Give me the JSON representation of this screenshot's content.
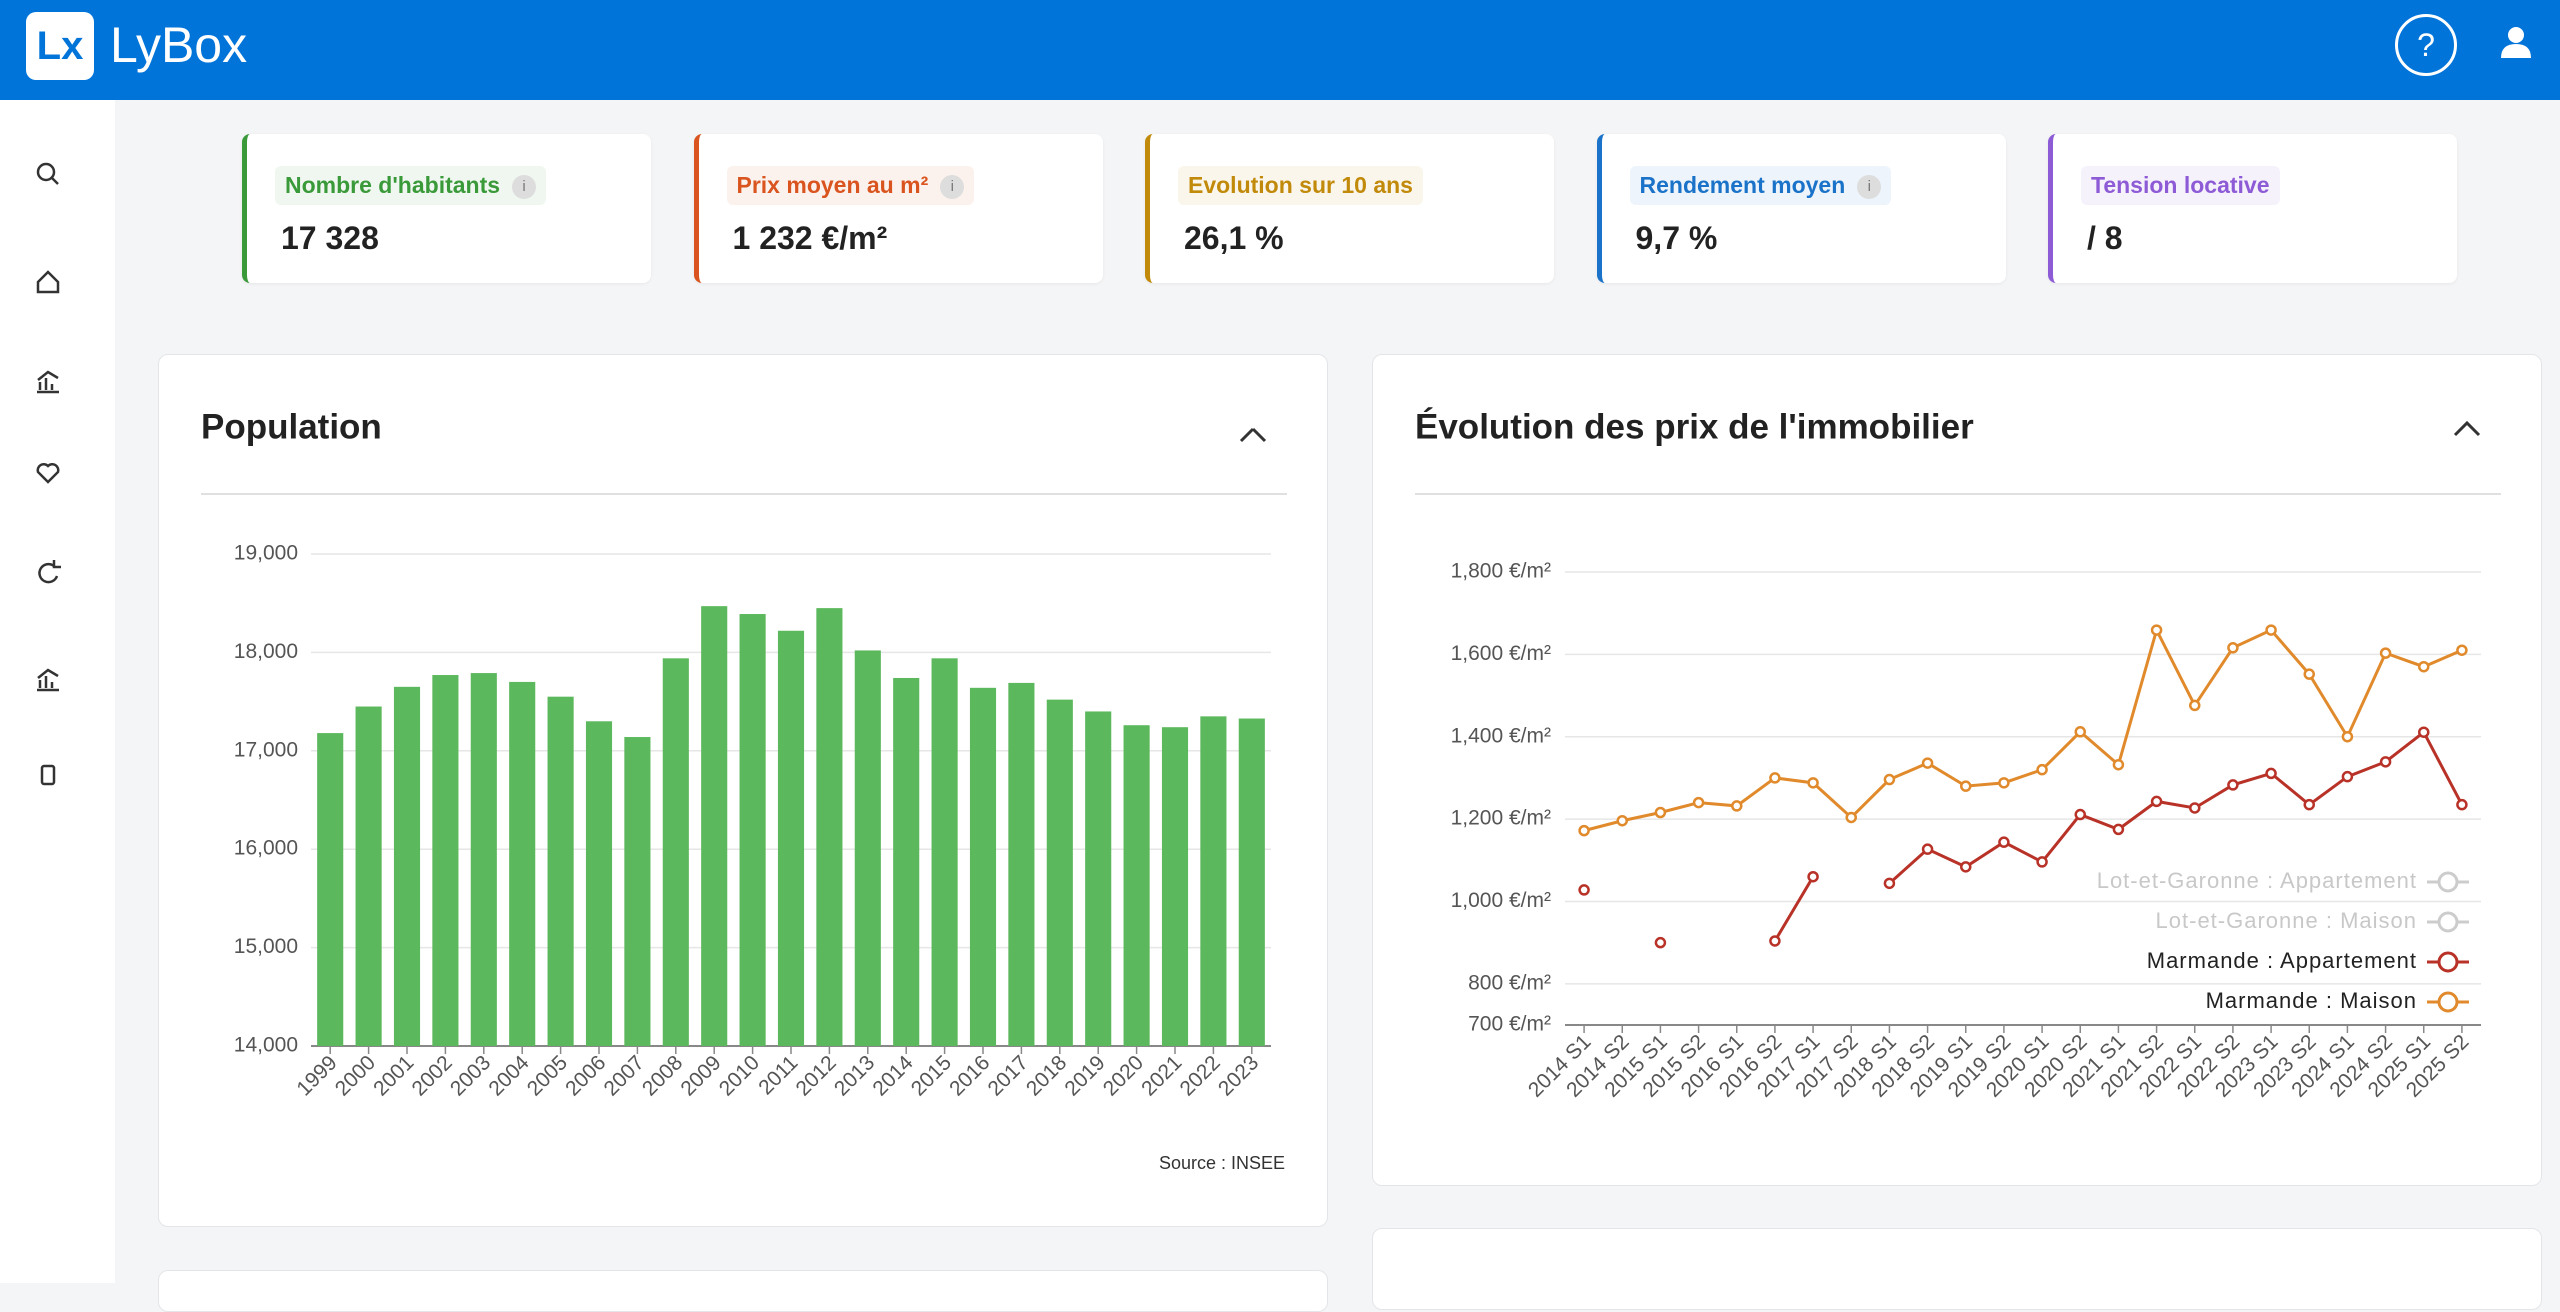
{
  "header": {
    "brand": "LyBox",
    "logo": "Lx",
    "help": "?"
  },
  "kpis": [
    {
      "label": "Nombre d'habitants",
      "value": "17 328",
      "info": "i",
      "color": "#3a9a3a"
    },
    {
      "label": "Prix moyen au m²",
      "value": "1 232 €/m²",
      "info": "i",
      "color": "#d9541e"
    },
    {
      "label": "Evolution sur 10 ans",
      "value": "26,1 %",
      "color": "#c28a0a"
    },
    {
      "label": "Rendement moyen",
      "value": "9,7 %",
      "info": "i",
      "color": "#1a73c8"
    },
    {
      "label": "Tension locative",
      "value": "/ 8",
      "color": "#8e5bd6"
    }
  ],
  "chart_data": [
    {
      "type": "bar",
      "title": "Population",
      "source": "Source : INSEE",
      "color": "#5cb85c",
      "categories": [
        "1999",
        "2000",
        "2001",
        "2002",
        "2003",
        "2004",
        "2005",
        "2006",
        "2007",
        "2008",
        "2009",
        "2010",
        "2011",
        "2012",
        "2013",
        "2014",
        "2015",
        "2016",
        "2017",
        "2018",
        "2019",
        "2020",
        "2021",
        "2022",
        "2023"
      ],
      "values": [
        17180,
        17450,
        17650,
        17770,
        17790,
        17700,
        17550,
        17300,
        17140,
        17940,
        18470,
        18390,
        18220,
        18450,
        18020,
        17740,
        17940,
        17640,
        17690,
        17520,
        17400,
        17260,
        17240,
        17350,
        17328
      ],
      "ylim": [
        14000,
        19000
      ],
      "yticks": [
        {
          "value": 14000,
          "label": "14,000"
        },
        {
          "value": 15000,
          "label": "15,000"
        },
        {
          "value": 16000,
          "label": "16,000"
        },
        {
          "value": 17000,
          "label": "17,000"
        },
        {
          "value": 18000,
          "label": "18,000"
        },
        {
          "value": 19000,
          "label": "19,000"
        }
      ],
      "grid": true
    },
    {
      "type": "line",
      "title": "Évolution des prix de l'immobilier",
      "legend": "bottom-right",
      "categories": [
        "2014 S1",
        "2014 S2",
        "2015 S1",
        "2015 S2",
        "2016 S1",
        "2016 S2",
        "2017 S1",
        "2017 S2",
        "2018 S1",
        "2018 S2",
        "2019 S1",
        "2019 S2",
        "2020 S1",
        "2020 S2",
        "2021 S1",
        "2021 S2",
        "2022 S1",
        "2022 S2",
        "2023 S1",
        "2023 S2",
        "2024 S1",
        "2024 S2",
        "2025 S1",
        "2025 S2"
      ],
      "series": [
        {
          "name": "Lot-et-Garonne : Appartement",
          "color": "#cccccc",
          "hidden": true
        },
        {
          "name": "Lot-et-Garonne : Maison",
          "color": "#cccccc",
          "hidden": true
        },
        {
          "name": "Marmande : Appartement",
          "color": "#b83228",
          "values": [
            1028,
            null,
            900,
            null,
            null,
            904,
            1060,
            null,
            1044,
            1127,
            1084,
            1144,
            1096,
            1211,
            1175,
            1243,
            1227,
            1283,
            1311,
            1235,
            1303,
            1339,
            1411,
            1235
          ]
        },
        {
          "name": "Marmande : Maison",
          "color": "#e08a2c",
          "values": [
            1172,
            1196,
            1216,
            1240,
            1232,
            1300,
            1288,
            1204,
            1296,
            1336,
            1280,
            1288,
            1320,
            1412,
            1332,
            1659,
            1476,
            1616,
            1659,
            1552,
            1400,
            1603,
            1570,
            1610
          ]
        }
      ],
      "ylim": [
        700,
        1800
      ],
      "yticks": [
        {
          "value": 700,
          "label": "700 €/m²"
        },
        {
          "value": 800,
          "label": "800 €/m²"
        },
        {
          "value": 1000,
          "label": "1,000 €/m²"
        },
        {
          "value": 1200,
          "label": "1,200 €/m²"
        },
        {
          "value": 1400,
          "label": "1,400 €/m²"
        },
        {
          "value": 1600,
          "label": "1,600 €/m²"
        },
        {
          "value": 1800,
          "label": "1,800 €/m²"
        }
      ],
      "grid": true
    }
  ]
}
